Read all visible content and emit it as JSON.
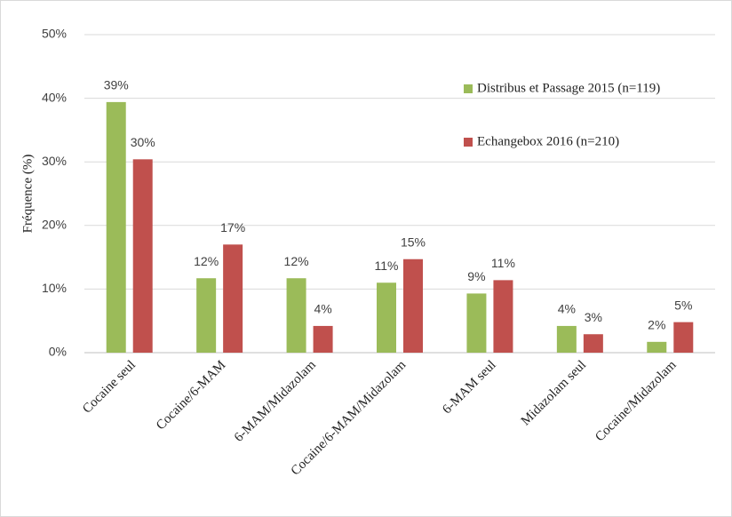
{
  "chart_data": {
    "type": "bar",
    "ylabel": "Fréquence (%)",
    "categories": [
      "Cocaine seul",
      "Cocaine/6-MAM",
      "6-MAM/Midazolam",
      "Cocaine/6-MAM/Midazolam",
      "6-MAM seul",
      "Midazolam seul",
      "Cocaine/Midazolam"
    ],
    "series": [
      {
        "name": "Distribus et Passage 2015 (n=119)",
        "color": "#9bbb59",
        "values": [
          39.4,
          11.7,
          11.7,
          11.0,
          9.3,
          4.2,
          1.7
        ],
        "value_labels": [
          "39%",
          "12%",
          "12%",
          "11%",
          "9%",
          "4%",
          "2%"
        ]
      },
      {
        "name": "Echangebox 2016 (n=210)",
        "color": "#c0504d",
        "values": [
          30.4,
          17.0,
          4.2,
          14.7,
          11.4,
          2.9,
          4.8
        ],
        "value_labels": [
          "30%",
          "17%",
          "4%",
          "15%",
          "11%",
          "3%",
          "5%"
        ]
      }
    ],
    "ylim": [
      0,
      50
    ],
    "yticks": [
      {
        "value": 0,
        "label": "0%"
      },
      {
        "value": 10,
        "label": "10%"
      },
      {
        "value": 20,
        "label": "20%"
      },
      {
        "value": 30,
        "label": "30%"
      },
      {
        "value": 40,
        "label": "40%"
      },
      {
        "value": 50,
        "label": "50%"
      }
    ],
    "grid": true,
    "legend": "upper right"
  }
}
